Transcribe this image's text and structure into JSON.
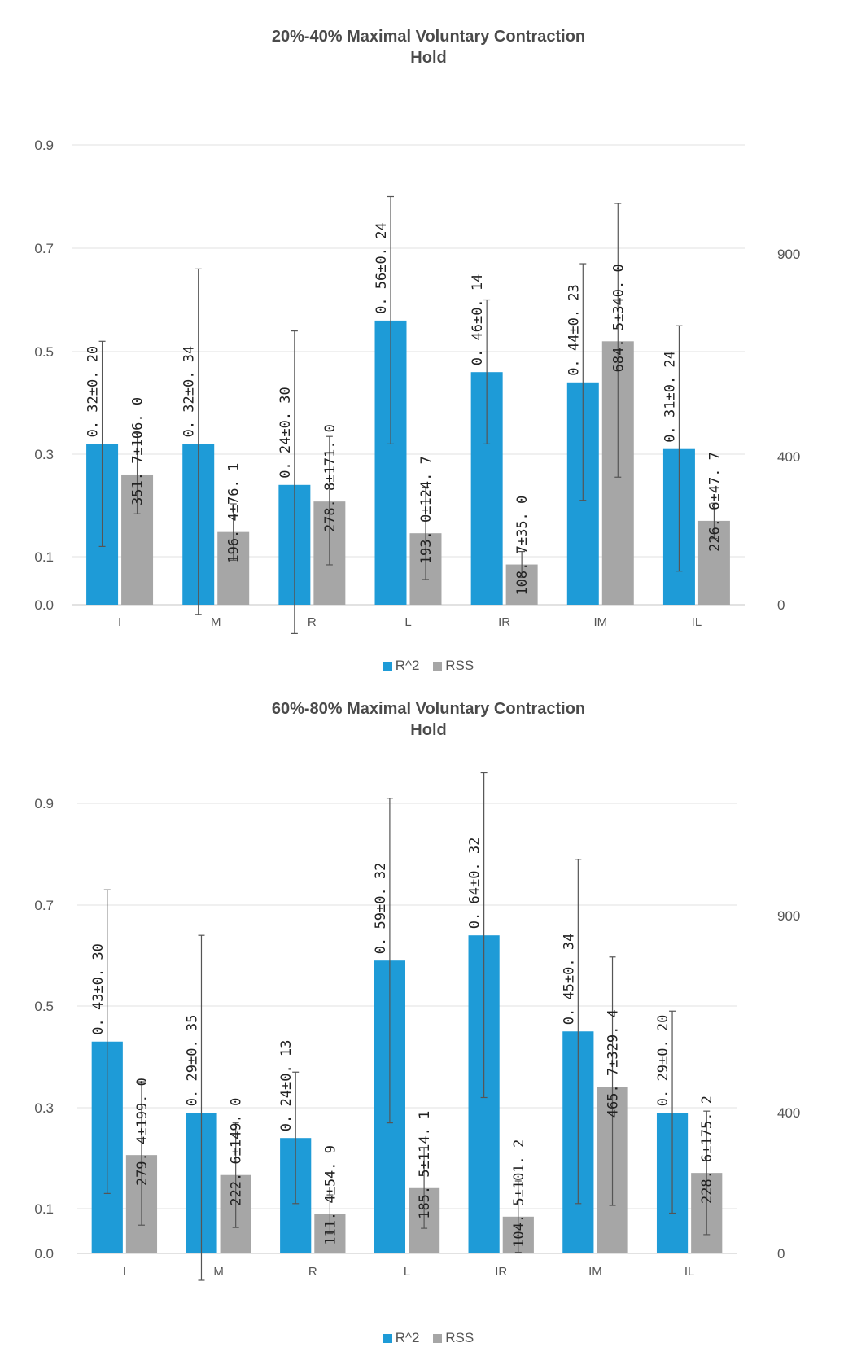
{
  "chart_data": [
    {
      "type": "bar",
      "title": [
        "20%-40% Maximal Voluntary Contraction",
        "Hold"
      ],
      "categories": [
        "I",
        "M",
        "R",
        "L",
        "IR",
        "IM",
        "IL"
      ],
      "y_left_ticks": [
        "0.9",
        "0.7",
        "0.5",
        "0.3",
        "0.1",
        "0.0"
      ],
      "y_right_ticks": [
        "900",
        "400",
        "0"
      ],
      "legend": [
        "R^2",
        "RSS"
      ],
      "colors": {
        "r2": "#1e9bd7",
        "rss": "#a6a6a6"
      },
      "series": [
        {
          "name": "R^2",
          "axis": "left",
          "values": [
            0.32,
            0.32,
            0.24,
            0.56,
            0.46,
            0.44,
            0.31
          ],
          "errors": [
            0.2,
            0.34,
            0.3,
            0.24,
            0.14,
            0.23,
            0.24
          ],
          "labels": [
            "0. 32±0. 20",
            "0. 32±0. 34",
            "0. 24±0. 30",
            "0. 56±0. 24",
            "0. 46±0. 14",
            "0. 44±0. 23",
            "0. 31±0. 24"
          ]
        },
        {
          "name": "RSS",
          "axis": "right",
          "values": [
            351.7,
            196.4,
            278.8,
            193.0,
            108.7,
            684.5,
            226.6
          ],
          "errors": [
            106.0,
            76.1,
            171.0,
            124.7,
            35.0,
            340.0,
            47.7
          ],
          "labels": [
            "351. 7±106. 0",
            "196. 4±76. 1",
            "278. 8±171. 0",
            "193. 0±124. 7",
            "108. 7±35. 0",
            "684. 5±340. 0",
            "226. 6±47. 7"
          ]
        }
      ]
    },
    {
      "type": "bar",
      "title": [
        "60%-80% Maximal Voluntary Contraction",
        "Hold"
      ],
      "categories": [
        "I",
        "M",
        "R",
        "L",
        "IR",
        "IM",
        "IL"
      ],
      "y_left_ticks": [
        "0.9",
        "0.7",
        "0.5",
        "0.3",
        "0.1",
        "0.0"
      ],
      "y_right_ticks": [
        "900",
        "400",
        "0"
      ],
      "legend": [
        "R^2",
        "RSS"
      ],
      "colors": {
        "r2": "#1e9bd7",
        "rss": "#a6a6a6"
      },
      "series": [
        {
          "name": "R^2",
          "axis": "left",
          "values": [
            0.43,
            0.29,
            0.24,
            0.59,
            0.64,
            0.45,
            0.29
          ],
          "errors": [
            0.3,
            0.35,
            0.13,
            0.32,
            0.32,
            0.34,
            0.2
          ],
          "labels": [
            "0. 43±0. 30",
            "0. 29±0. 35",
            "0. 24±0. 13",
            "0. 59±0. 32",
            "0. 64±0. 32",
            "0. 45±0. 34",
            "0. 29±0. 20"
          ]
        },
        {
          "name": "RSS",
          "axis": "right",
          "values": [
            279.4,
            222.6,
            111.4,
            185.5,
            104.5,
            465.7,
            228.6
          ],
          "errors": [
            199.0,
            149.0,
            54.9,
            114.1,
            101.2,
            329.4,
            175.2
          ],
          "labels": [
            "279. 4±199. 0",
            "222. 6±149. 0",
            "111. 4±54. 9",
            "185. 5±114. 1",
            "104. 5±101. 2",
            "465. 7±329. 4",
            "228. 6±175. 2"
          ]
        }
      ]
    }
  ]
}
